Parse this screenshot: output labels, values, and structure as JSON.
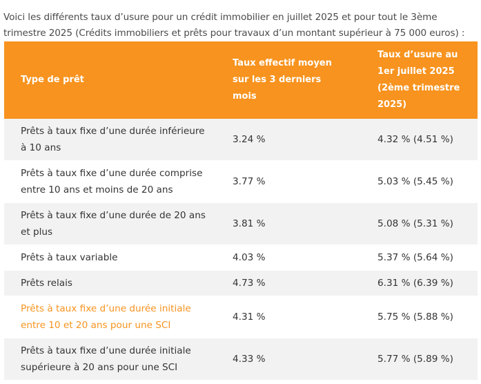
{
  "intro": "Voici les différents taux d’usure pour un crédit immobilier en juillet 2025 et pour tout le 3ème trimestre 2025 (Crédits immobiliers et prêts pour travaux d’un montant supérieur à 75 000 euros) :",
  "table": {
    "headers": {
      "type": "Type de prêt",
      "avg": "Taux effectif moyen sur les 3 derniers mois",
      "usury": "Taux d’usure au 1er juillet 2025 (2ème trimestre 2025)"
    },
    "rows": [
      {
        "type": "Prêts à taux fixe d’une durée inférieure à 10 ans",
        "avg": "3.24 %",
        "usury": "4.32 % (4.51 %)"
      },
      {
        "type": "Prêts à taux fixe d’une durée comprise entre 10 ans et moins de 20 ans",
        "avg": "3.77 %",
        "usury": "5.03 % (5.45 %)"
      },
      {
        "type": "Prêts à taux fixe d’une durée de 20 ans et plus",
        "avg": "3.81 %",
        "usury": "5.08 % (5.31 %)"
      },
      {
        "type": "Prêts à taux variable",
        "avg": "4.03 %",
        "usury": "5.37 % (5.64 %)"
      },
      {
        "type": "Prêts relais",
        "avg": "4.73 %",
        "usury": "6.31 % (6.39 %)"
      },
      {
        "type": "Prêts à taux fixe d’une durée initiale entre 10 et 20 ans pour une SCI",
        "avg": "4.31 %",
        "usury": "5.75 % (5.88 %)"
      },
      {
        "type": "Prêts à taux fixe d’une durée initiale supérieure à 20 ans pour une SCI",
        "avg": "4.33 %",
        "usury": "5.77 % (5.89 %)"
      }
    ]
  },
  "colors": {
    "header_bg": "#f7931e",
    "header_text": "#ffffff",
    "stripe": "#f2f2f2",
    "link_row_text": "#f7931e"
  }
}
